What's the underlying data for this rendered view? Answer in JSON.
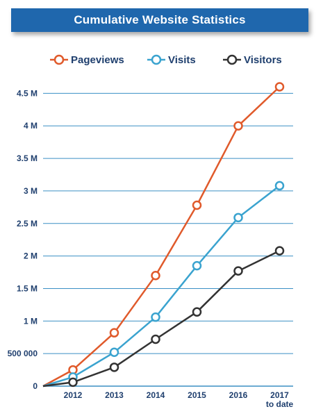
{
  "chart_data": {
    "type": "line",
    "title": "Cumulative Website Statistics",
    "categories": [
      "2012",
      "2013",
      "2014",
      "2015",
      "2016",
      "2017"
    ],
    "category_sublabels": [
      "",
      "",
      "",
      "",
      "",
      "to date"
    ],
    "series": [
      {
        "name": "Pageviews",
        "color": "#e05a2b",
        "values": [
          250000,
          820000,
          1700000,
          2780000,
          4000000,
          4600000
        ]
      },
      {
        "name": "Visits",
        "color": "#3aa3cf",
        "values": [
          140000,
          520000,
          1060000,
          1850000,
          2590000,
          3080000
        ]
      },
      {
        "name": "Visitors",
        "color": "#333333",
        "values": [
          60000,
          290000,
          720000,
          1140000,
          1770000,
          2080000
        ]
      }
    ],
    "y_ticks": [
      0,
      500000,
      1000000,
      1500000,
      2000000,
      2500000,
      3000000,
      3500000,
      4000000,
      4500000
    ],
    "y_tick_labels": [
      "0",
      "500 000",
      "1 M",
      "1.5 M",
      "2 M",
      "2.5 M",
      "3 M",
      "3.5 M",
      "4 M",
      "4.5 M"
    ],
    "ylim": [
      0,
      4600000
    ],
    "grid": true,
    "legend": "top"
  }
}
